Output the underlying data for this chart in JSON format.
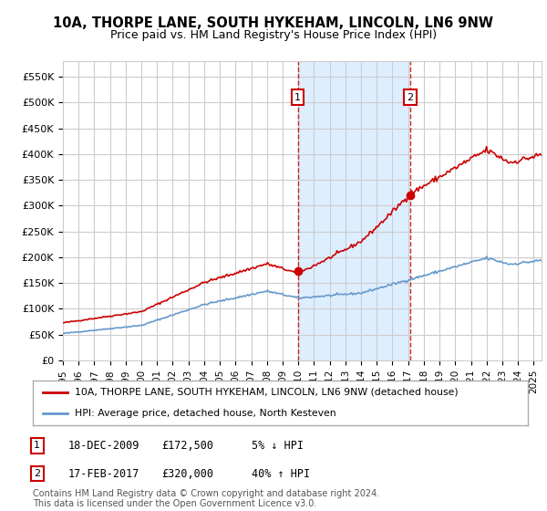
{
  "title": "10A, THORPE LANE, SOUTH HYKEHAM, LINCOLN, LN6 9NW",
  "subtitle": "Price paid vs. HM Land Registry's House Price Index (HPI)",
  "ylabel_ticks": [
    "£0",
    "£50K",
    "£100K",
    "£150K",
    "£200K",
    "£250K",
    "£300K",
    "£350K",
    "£400K",
    "£450K",
    "£500K",
    "£550K"
  ],
  "ytick_values": [
    0,
    50000,
    100000,
    150000,
    200000,
    250000,
    300000,
    350000,
    400000,
    450000,
    500000,
    550000
  ],
  "ylim": [
    0,
    580000
  ],
  "xlim_start": 1995.0,
  "xlim_end": 2025.5,
  "sale1_x": 2009.96,
  "sale1_y": 172500,
  "sale1_label": "1",
  "sale1_date": "18-DEC-2009",
  "sale1_price": "£172,500",
  "sale1_hpi": "5% ↓ HPI",
  "sale2_x": 2017.12,
  "sale2_y": 320000,
  "sale2_label": "2",
  "sale2_date": "17-FEB-2017",
  "sale2_price": "£320,000",
  "sale2_hpi": "40% ↑ HPI",
  "red_line_color": "#cc0000",
  "blue_line_color": "#6699cc",
  "shaded_region_color": "#ddeeff",
  "grid_color": "#cccccc",
  "background_color": "#ffffff",
  "legend_label_red": "10A, THORPE LANE, SOUTH HYKEHAM, LINCOLN, LN6 9NW (detached house)",
  "legend_label_blue": "HPI: Average price, detached house, North Kesteven",
  "footer": "Contains HM Land Registry data © Crown copyright and database right 2024.\nThis data is licensed under the Open Government Licence v3.0.",
  "sale_marker_box_color": "#cc0000",
  "xtick_years": [
    1995,
    1996,
    1997,
    1998,
    1999,
    2000,
    2001,
    2002,
    2003,
    2004,
    2005,
    2006,
    2007,
    2008,
    2009,
    2010,
    2011,
    2012,
    2013,
    2014,
    2015,
    2016,
    2017,
    2018,
    2019,
    2020,
    2021,
    2022,
    2023,
    2024,
    2025
  ],
  "n_points": 366
}
